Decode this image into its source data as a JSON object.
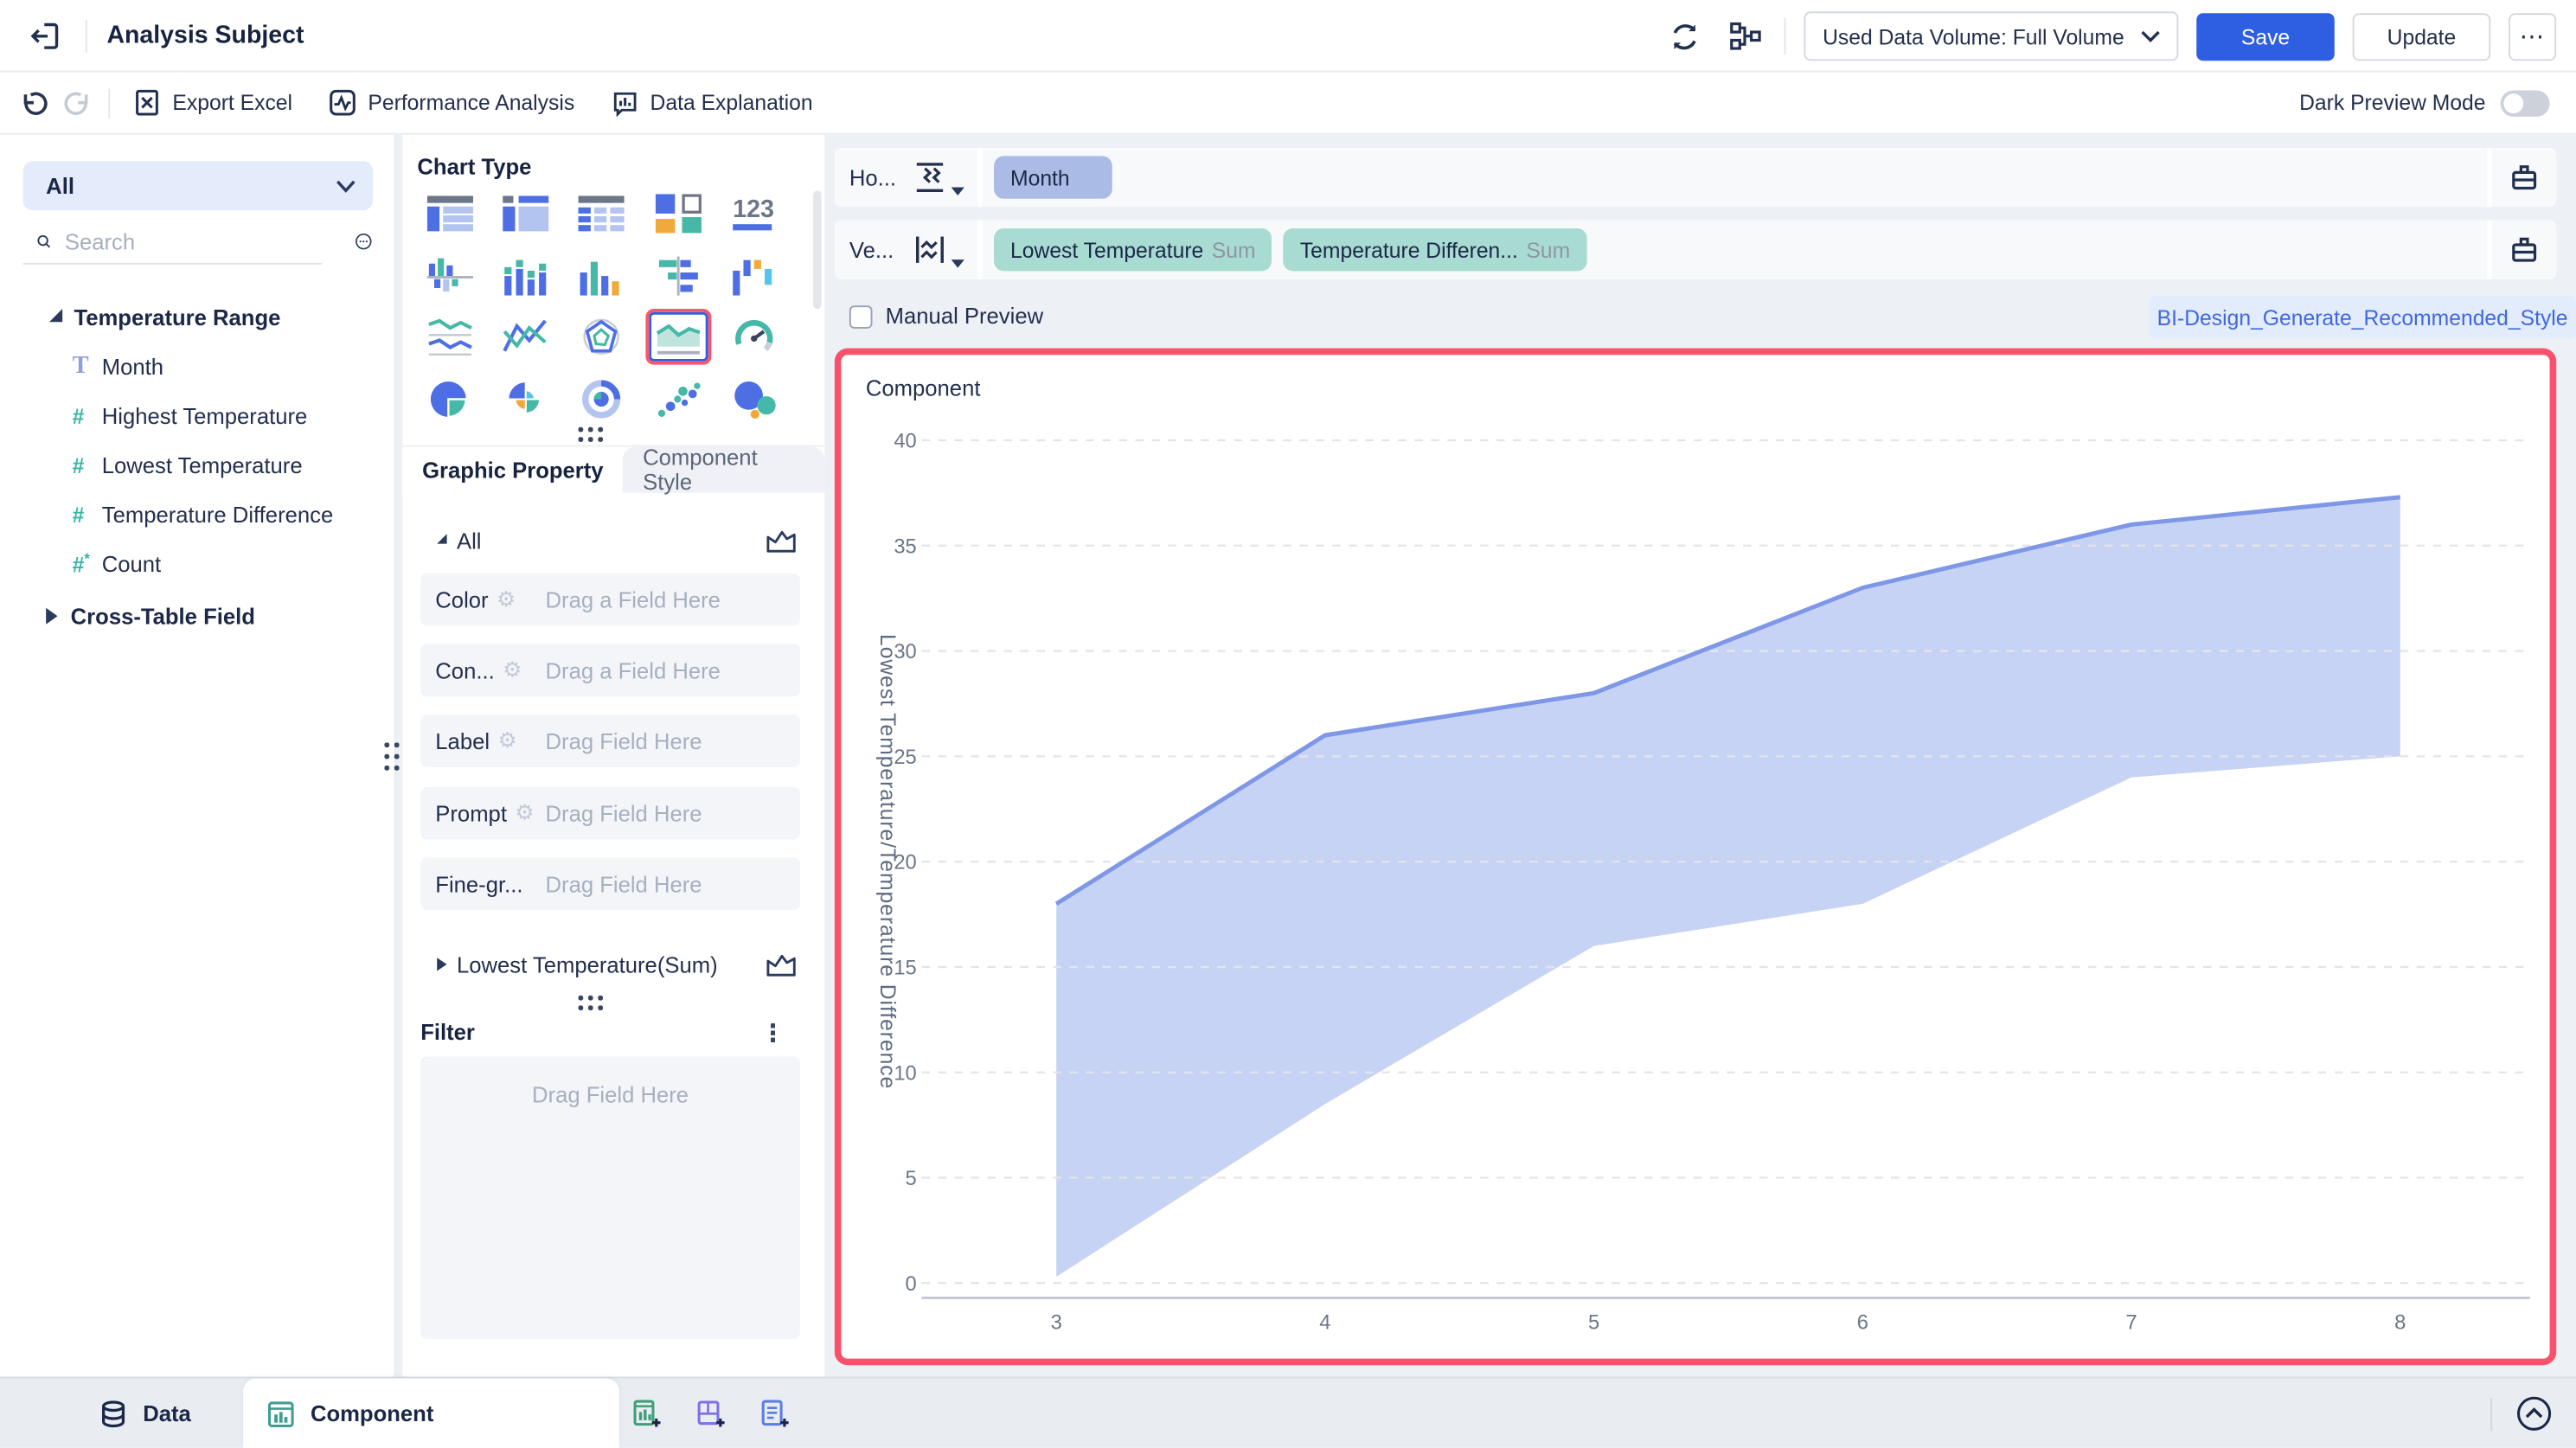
{
  "header": {
    "title": "Analysis Subject",
    "data_volume": "Used Data Volume: Full Volume",
    "save_label": "Save",
    "update_label": "Update",
    "more_label": "⋯"
  },
  "toolbar": {
    "export_excel": "Export Excel",
    "performance_analysis": "Performance Analysis",
    "data_explanation": "Data Explanation",
    "dark_preview_label": "Dark Preview Mode",
    "dark_preview_on": false
  },
  "sidebar": {
    "dataset_selector": "All",
    "search_placeholder": "Search",
    "groups": [
      {
        "label": "Temperature Range",
        "expanded": true,
        "fields": [
          {
            "name": "Month",
            "type": "text"
          },
          {
            "name": "Highest Temperature",
            "type": "number"
          },
          {
            "name": "Lowest Temperature",
            "type": "number"
          },
          {
            "name": "Temperature Difference",
            "type": "number"
          },
          {
            "name": "Count",
            "type": "number-aggregate"
          }
        ]
      },
      {
        "label": "Cross-Table Field",
        "expanded": false,
        "fields": []
      }
    ]
  },
  "chart_type_panel": {
    "title": "Chart Type",
    "selected": "area-chart",
    "types": [
      "detail-table",
      "grouped-table",
      "cross-table",
      "kpi-grid",
      "indicator-card",
      "multi-series-column",
      "stacked-column",
      "column-chart",
      "bar-chart",
      "waterfall-chart",
      "stream-area",
      "line-chart",
      "radar-chart",
      "area-chart",
      "gauge-chart",
      "pie-chart",
      "rose-chart",
      "donut-chart",
      "scatter-chart",
      "bubble-chart"
    ]
  },
  "properties": {
    "tabs": [
      {
        "label": "Graphic Property",
        "active": true
      },
      {
        "label": "Component Style",
        "active": false
      }
    ],
    "all_section_label": "All",
    "fields": [
      {
        "label": "Color",
        "placeholder": "Drag a Field Here",
        "gear": true
      },
      {
        "label": "Con...",
        "placeholder": "Drag a Field Here",
        "gear": true
      },
      {
        "label": "Label",
        "placeholder": "Drag Field Here",
        "gear": true
      },
      {
        "label": "Prompt",
        "placeholder": "Drag Field Here",
        "gear": true
      },
      {
        "label": "Fine-gr...",
        "placeholder": "Drag Field Here",
        "gear": false
      }
    ],
    "collapsed_section_label": "Lowest Temperature(Sum)"
  },
  "filter": {
    "title": "Filter",
    "placeholder": "Drag Field Here"
  },
  "shelves": {
    "horizontal": {
      "label": "Ho...",
      "pills": [
        {
          "name": "Month"
        }
      ]
    },
    "vertical": {
      "label": "Ve...",
      "pills": [
        {
          "name": "Lowest Temperature",
          "agg": "Sum"
        },
        {
          "name": "Temperature Differen...",
          "agg": "Sum"
        }
      ]
    }
  },
  "preview": {
    "manual_preview_label": "Manual Preview",
    "manual_preview_checked": false,
    "style_button": "BI-Design_Generate_Recommended_Style"
  },
  "chart_data": {
    "type": "area",
    "title": "Component",
    "x": [
      3,
      4,
      5,
      6,
      7,
      8
    ],
    "series": [
      {
        "name": "Lowest Temperature (Sum)",
        "role": "upper",
        "values": [
          18,
          26,
          28,
          33,
          36,
          37.3
        ]
      },
      {
        "name": "Temperature Difference (Sum)",
        "role": "lower",
        "values": [
          0.3,
          8.5,
          16,
          18,
          24,
          25
        ]
      }
    ],
    "ylabel": "Lowest Temperature/Temperature Difference",
    "xlabel": "",
    "ylim": [
      0,
      40
    ],
    "yticks": [
      0,
      5,
      10,
      15,
      20,
      25,
      30,
      35,
      40
    ],
    "grid": "horizontal-dashed",
    "legend": "none",
    "colors": {
      "band_fill": "#c7d3f4",
      "line": "#7e97e6",
      "gridline": "#e2e5eb",
      "axis": "#c2c8d2",
      "tick_text": "#6a7688",
      "axis_title": "#5d6b80"
    }
  },
  "bottom_bar": {
    "tabs": [
      {
        "label": "Data",
        "active": false
      },
      {
        "label": "Component",
        "active": true
      }
    ],
    "add_buttons": [
      "add-component",
      "add-dashboard",
      "add-report"
    ]
  },
  "icons": {
    "gear": "⚙",
    "kebab": "⋮",
    "indicator_123": "123",
    "text_field_glyph": "T",
    "number_field_glyph": "#",
    "count_star": "*"
  },
  "colors": {
    "accent_blue": "#2e5fe2",
    "icon_blue": "#4e6fe3",
    "light_blue": "#b3c4f0",
    "teal": "#45b8a8",
    "orange": "#f2a93b",
    "cyan": "#56c3e8",
    "pill_dimension": "#aabce5",
    "pill_measure": "#a8dbd1",
    "selection_red": "#f9516b",
    "link_blue": "#3f68e0",
    "page_bg": "#edf0f5",
    "bottombar_bg": "#e9edf2"
  }
}
